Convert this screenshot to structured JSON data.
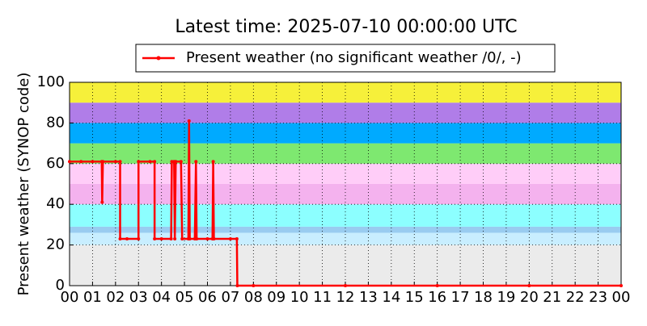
{
  "chart_data": {
    "type": "line",
    "title": "Latest time: 2025-07-10 00:00:00 UTC",
    "y_label": "Present weather (SYNOP code)",
    "x": [
      0,
      0.5,
      1.0,
      1.4,
      1.42,
      1.45,
      2.0,
      2.2,
      2.2,
      2.5,
      3.0,
      3.0,
      3.5,
      3.7,
      3.7,
      4.0,
      4.42,
      4.45,
      4.55,
      4.58,
      4.62,
      4.85,
      4.9,
      5.17,
      5.2,
      5.23,
      5.45,
      5.5,
      5.53,
      6.0,
      6.22,
      6.25,
      6.28,
      7.0,
      7.28,
      7.3,
      8,
      12,
      16,
      20,
      24
    ],
    "series": [
      {
        "name": "Present weather (no significant weather /0/, -)",
        "color": "#ff0000",
        "values": [
          61,
          61,
          61,
          61,
          41,
          61,
          61,
          61,
          23,
          23,
          23,
          61,
          61,
          61,
          23,
          23,
          23,
          61,
          61,
          23,
          61,
          61,
          23,
          23,
          81,
          23,
          23,
          61,
          23,
          23,
          23,
          61,
          23,
          23,
          23,
          0,
          0,
          0,
          0,
          0,
          0
        ]
      }
    ],
    "xlim": [
      0,
      24
    ],
    "xticks": [
      {
        "value": 0,
        "label": "00"
      },
      {
        "value": 1,
        "label": "01"
      },
      {
        "value": 2,
        "label": "02"
      },
      {
        "value": 3,
        "label": "03"
      },
      {
        "value": 4,
        "label": "04"
      },
      {
        "value": 5,
        "label": "05"
      },
      {
        "value": 6,
        "label": "06"
      },
      {
        "value": 7,
        "label": "07"
      },
      {
        "value": 8,
        "label": "08"
      },
      {
        "value": 9,
        "label": "09"
      },
      10,
      11,
      12,
      13,
      14,
      15,
      16,
      17,
      18,
      19,
      20,
      21,
      22,
      23,
      {
        "value": 24,
        "label": "00"
      }
    ],
    "ylim": [
      0,
      100
    ],
    "yticks": [
      0,
      20,
      40,
      60,
      80,
      100
    ],
    "grid": true,
    "legend": "top",
    "bands": [
      {
        "from": 0,
        "to": 20,
        "color": "#ebebeb"
      },
      {
        "from": 20,
        "to": 26,
        "color": "#c8eeff"
      },
      {
        "from": 26,
        "to": 29,
        "color": "#99ccf0"
      },
      {
        "from": 29,
        "to": 40,
        "color": "#8cffff"
      },
      {
        "from": 40,
        "to": 50,
        "color": "#f4b2ee"
      },
      {
        "from": 50,
        "to": 60,
        "color": "#ffcdf8"
      },
      {
        "from": 60,
        "to": 70,
        "color": "#7ee870"
      },
      {
        "from": 70,
        "to": 80,
        "color": "#00aaff"
      },
      {
        "from": 80,
        "to": 90,
        "color": "#b07de8"
      },
      {
        "from": 90,
        "to": 100,
        "color": "#f6f03a"
      }
    ]
  }
}
